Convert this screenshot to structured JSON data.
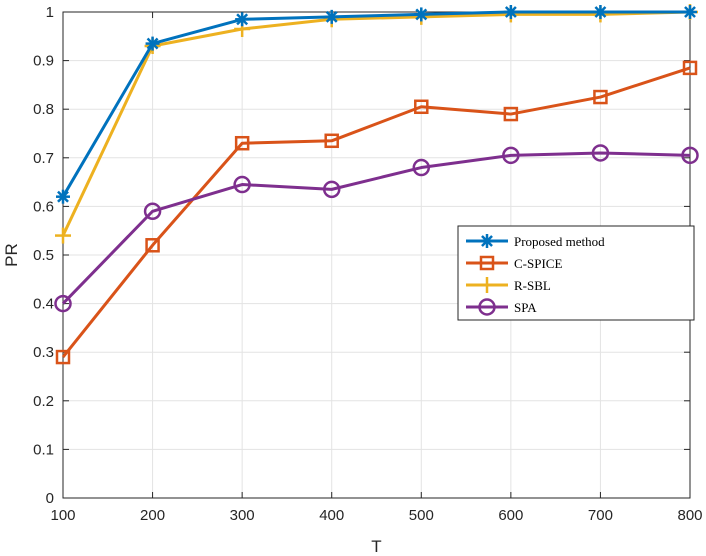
{
  "chart_data": {
    "type": "line",
    "title": "",
    "xlabel": "T",
    "ylabel": "PR",
    "x": [
      100,
      200,
      300,
      400,
      500,
      600,
      700,
      800
    ],
    "xlim": [
      100,
      800
    ],
    "ylim": [
      0,
      1
    ],
    "xticks": [
      "100",
      "200",
      "300",
      "400",
      "500",
      "600",
      "700",
      "800"
    ],
    "yticks": [
      "0",
      "0.1",
      "0.2",
      "0.3",
      "0.4",
      "0.5",
      "0.6",
      "0.7",
      "0.8",
      "0.9",
      "1"
    ],
    "grid": true,
    "legend_position": "right-center",
    "series": [
      {
        "name": "Proposed method",
        "color": "#0072BD",
        "marker": "asterisk",
        "values": [
          0.62,
          0.935,
          0.985,
          0.99,
          0.995,
          1.0,
          1.0,
          1.0
        ]
      },
      {
        "name": "C-SPICE",
        "color": "#D95319",
        "marker": "square",
        "values": [
          0.29,
          0.52,
          0.73,
          0.735,
          0.805,
          0.79,
          0.825,
          0.885
        ]
      },
      {
        "name": "R-SBL",
        "color": "#EDB120",
        "marker": "plus",
        "values": [
          0.54,
          0.93,
          0.965,
          0.985,
          0.99,
          0.995,
          0.995,
          1.0
        ]
      },
      {
        "name": "SPA",
        "color": "#7E2F8E",
        "marker": "circle",
        "values": [
          0.4,
          0.59,
          0.645,
          0.635,
          0.68,
          0.705,
          0.71,
          0.705
        ]
      }
    ]
  }
}
